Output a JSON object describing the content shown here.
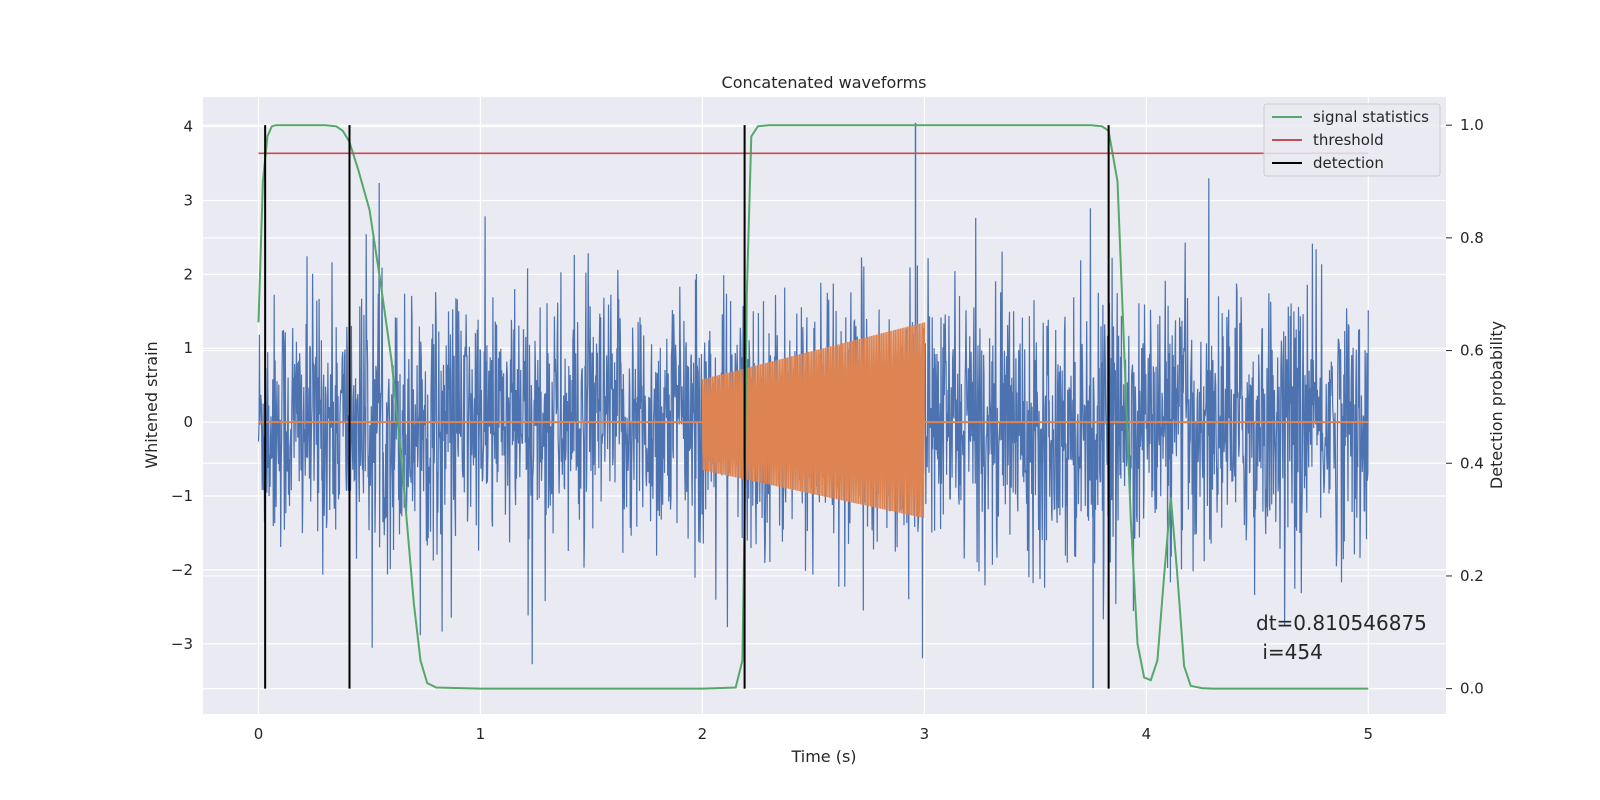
{
  "chart_data": {
    "type": "line",
    "title": "Concatenated waveforms",
    "xlabel": "Time (s)",
    "ylabel": "Whitened strain",
    "ylabel_right": "Detection probability",
    "xlim": [
      -0.25,
      5.35
    ],
    "ylim": [
      -3.95,
      4.4
    ],
    "ylim_right": [
      -0.045,
      1.05
    ],
    "xticks": [
      0,
      1,
      2,
      3,
      4,
      5
    ],
    "yticks": [
      -3,
      -2,
      -1,
      0,
      1,
      2,
      3,
      4
    ],
    "yticks_right": [
      0.0,
      0.2,
      0.4,
      0.6,
      0.8,
      1.0
    ],
    "grid": true,
    "legend_position": "top-right",
    "colors": {
      "strain": "#4c72b0",
      "injected_signal": "#dd8452",
      "signal_statistics": "#55a868",
      "threshold": "#c44e52",
      "detection": "#000000",
      "background": "#eaeaf2"
    },
    "series": [
      {
        "name": "signal statistics",
        "axis": "right",
        "x": [
          0.0,
          0.02,
          0.04,
          0.06,
          0.08,
          0.1,
          0.2,
          0.3,
          0.35,
          0.38,
          0.41,
          0.45,
          0.5,
          0.55,
          0.6,
          0.65,
          0.7,
          0.73,
          0.76,
          0.8,
          1.0,
          1.5,
          2.0,
          2.15,
          2.18,
          2.19,
          2.2,
          2.22,
          2.25,
          2.3,
          2.5,
          3.0,
          3.5,
          3.75,
          3.8,
          3.83,
          3.87,
          3.9,
          3.93,
          3.96,
          3.99,
          4.02,
          4.05,
          4.08,
          4.11,
          4.14,
          4.17,
          4.2,
          4.25,
          4.3,
          4.5,
          5.0
        ],
        "values": [
          0.65,
          0.9,
          0.98,
          0.998,
          1.0,
          1.0,
          1.0,
          1.0,
          0.998,
          0.99,
          0.97,
          0.92,
          0.85,
          0.72,
          0.58,
          0.38,
          0.15,
          0.05,
          0.01,
          0.002,
          0.0,
          0.0,
          0.0,
          0.002,
          0.05,
          0.3,
          0.7,
          0.98,
          0.998,
          1.0,
          1.0,
          1.0,
          1.0,
          1.0,
          0.998,
          0.99,
          0.9,
          0.6,
          0.3,
          0.08,
          0.02,
          0.015,
          0.05,
          0.2,
          0.34,
          0.2,
          0.04,
          0.005,
          0.001,
          0.0,
          0.0,
          0.0
        ]
      },
      {
        "name": "threshold",
        "axis": "right",
        "x": [
          0,
          5
        ],
        "values": [
          0.95,
          0.95
        ]
      },
      {
        "name": "detection",
        "axis": "right",
        "x": [
          0.03,
          0.41,
          2.19,
          3.83
        ],
        "values": [
          [
            0.0,
            1.0
          ],
          [
            0.0,
            1.0
          ],
          [
            0.0,
            1.0
          ],
          [
            0.0,
            1.0
          ]
        ]
      }
    ],
    "strain_noise": {
      "x_range": [
        0.0,
        5.0
      ],
      "typical_range": [
        -2.2,
        2.2
      ],
      "extremes": {
        "max": 4.05,
        "min": -3.6
      }
    },
    "injected_waveform": {
      "x_range": [
        2.0,
        3.0
      ],
      "amplitude_start": 0.58,
      "amplitude_end": 1.35,
      "negative_start": -0.65,
      "negative_end": -1.3
    },
    "annotations": [
      "dt=0.810546875",
      " i=454"
    ]
  }
}
